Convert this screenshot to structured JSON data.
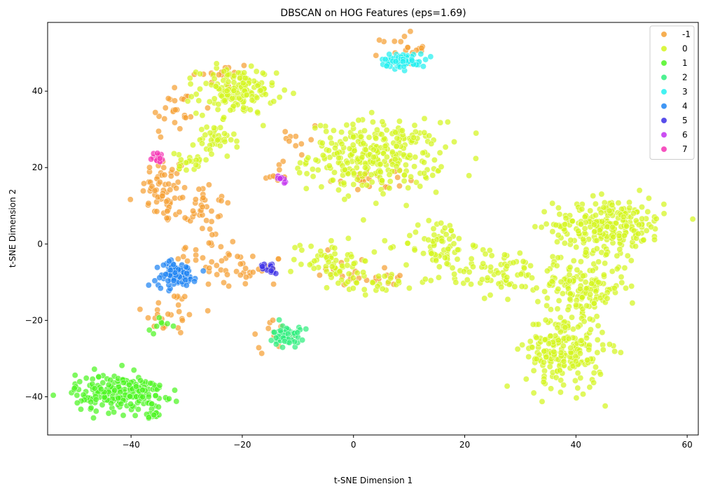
{
  "chart_data": {
    "type": "scatter",
    "title": "DBSCAN on HOG Features (eps=1.69)",
    "xlabel": "t-SNE Dimension 1",
    "ylabel": "t-SNE Dimension 2",
    "xlim": [
      -55,
      62
    ],
    "ylim": [
      -50,
      58
    ],
    "xticks": [
      -40,
      -20,
      0,
      20,
      40,
      60
    ],
    "yticks": [
      -40,
      -20,
      0,
      20,
      40
    ],
    "grid": false,
    "legend_position": "top-right",
    "series": [
      {
        "name": "-1",
        "color": "#f5a033",
        "clusters": [
          {
            "cx": -34,
            "cy": 14,
            "sx": 2.0,
            "sy": 4.5,
            "n": 60
          },
          {
            "cx": -28,
            "cy": 10,
            "sx": 3.0,
            "sy": 3.5,
            "n": 40
          },
          {
            "cx": -32,
            "cy": 35,
            "sx": 2.5,
            "sy": 4.0,
            "n": 25
          },
          {
            "cx": -24,
            "cy": 44,
            "sx": 3.0,
            "sy": 2.0,
            "n": 15
          },
          {
            "cx": -33,
            "cy": -18,
            "sx": 2.5,
            "sy": 3.0,
            "n": 25
          },
          {
            "cx": -20,
            "cy": -7,
            "sx": 4.0,
            "sy": 2.5,
            "n": 35
          },
          {
            "cx": -26,
            "cy": -2,
            "sx": 3.0,
            "sy": 3.0,
            "n": 20
          },
          {
            "cx": -14,
            "cy": 18,
            "sx": 1.5,
            "sy": 1.5,
            "n": 10
          },
          {
            "cx": 9,
            "cy": 51,
            "sx": 2.0,
            "sy": 2.0,
            "n": 20
          },
          {
            "cx": 2,
            "cy": 17,
            "sx": 3.5,
            "sy": 2.0,
            "n": 25
          },
          {
            "cx": -8,
            "cy": 28,
            "sx": 2.0,
            "sy": 3.0,
            "n": 10
          },
          {
            "cx": 6,
            "cy": -9,
            "sx": 2.0,
            "sy": 1.5,
            "n": 12
          },
          {
            "cx": -15,
            "cy": -24,
            "sx": 2.0,
            "sy": 2.0,
            "n": 12
          },
          {
            "cx": -2,
            "cy": -6,
            "sx": 3.0,
            "sy": 3.0,
            "n": 15
          }
        ]
      },
      {
        "name": "0",
        "color": "#d4f51f",
        "clusters": [
          {
            "cx": 4,
            "cy": 23,
            "sx": 6.0,
            "sy": 4.5,
            "n": 300
          },
          {
            "cx": -21,
            "cy": 40,
            "sx": 3.5,
            "sy": 3.0,
            "n": 150
          },
          {
            "cx": -25,
            "cy": 27,
            "sx": 1.8,
            "sy": 2.5,
            "n": 40
          },
          {
            "cx": -30,
            "cy": 21,
            "sx": 2.0,
            "sy": 1.5,
            "n": 20
          },
          {
            "cx": -4,
            "cy": -4,
            "sx": 3.5,
            "sy": 3.0,
            "n": 60
          },
          {
            "cx": 5,
            "cy": -10,
            "sx": 4.0,
            "sy": 1.5,
            "n": 30
          },
          {
            "cx": 15,
            "cy": 0,
            "sx": 3.0,
            "sy": 3.5,
            "n": 60
          },
          {
            "cx": 22,
            "cy": -7,
            "sx": 4.0,
            "sy": 4.0,
            "n": 50
          },
          {
            "cx": 29,
            "cy": -8,
            "sx": 3.0,
            "sy": 2.5,
            "n": 30
          },
          {
            "cx": 46,
            "cy": 5,
            "sx": 5.0,
            "sy": 3.5,
            "n": 250
          },
          {
            "cx": 41,
            "cy": -11,
            "sx": 4.0,
            "sy": 3.5,
            "n": 150
          },
          {
            "cx": 38,
            "cy": -28,
            "sx": 3.5,
            "sy": 5.0,
            "n": 220
          }
        ]
      },
      {
        "name": "1",
        "color": "#4cf521",
        "clusters": [
          {
            "cx": -42,
            "cy": -39,
            "sx": 4.0,
            "sy": 2.5,
            "n": 220
          },
          {
            "cx": -36,
            "cy": -44.5,
            "sx": 1.0,
            "sy": 0.5,
            "n": 12
          },
          {
            "cx": -35,
            "cy": -22,
            "sx": 1.0,
            "sy": 1.5,
            "n": 8
          }
        ]
      },
      {
        "name": "2",
        "color": "#2fef7e",
        "clusters": [
          {
            "cx": -12,
            "cy": -24,
            "sx": 1.2,
            "sy": 1.5,
            "n": 60
          }
        ]
      },
      {
        "name": "3",
        "color": "#22f0f0",
        "clusters": [
          {
            "cx": 9,
            "cy": 48,
            "sx": 2.0,
            "sy": 0.9,
            "n": 70
          }
        ]
      },
      {
        "name": "4",
        "color": "#1e84f2",
        "clusters": [
          {
            "cx": -32,
            "cy": -8,
            "sx": 1.8,
            "sy": 1.6,
            "n": 100
          }
        ]
      },
      {
        "name": "5",
        "color": "#3a2ee6",
        "clusters": [
          {
            "cx": -15,
            "cy": -6,
            "sx": 1.0,
            "sy": 0.8,
            "n": 15
          }
        ]
      },
      {
        "name": "6",
        "color": "#c22ff0",
        "clusters": [
          {
            "cx": -13,
            "cy": 17,
            "sx": 0.5,
            "sy": 0.4,
            "n": 8
          }
        ]
      },
      {
        "name": "7",
        "color": "#f533b4",
        "clusters": [
          {
            "cx": -35,
            "cy": 22.5,
            "sx": 0.6,
            "sy": 0.8,
            "n": 14
          }
        ]
      }
    ]
  }
}
